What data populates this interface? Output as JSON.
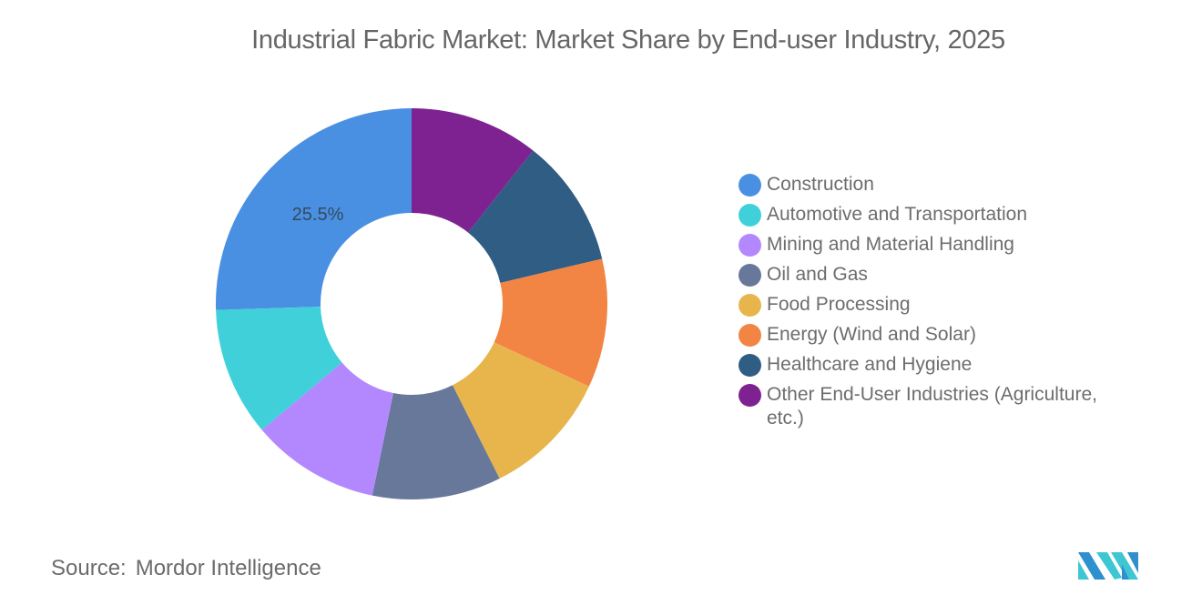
{
  "title": "Industrial Fabric Market: Market Share by End-user Industry, 2025",
  "source": {
    "label": "Source:",
    "value": "Mordor Intelligence"
  },
  "logo": {
    "name": "Mordor Intelligence logo",
    "colors": [
      "#2f8fcf",
      "#3ec6d3"
    ]
  },
  "chart_data": {
    "type": "pie",
    "subtype": "donut",
    "title": "Industrial Fabric Market: Market Share by End-user Industry, 2025",
    "legend_position": "right",
    "start_angle_deg": 0,
    "direction": "clockwise-from-top (Construction drawn counter-clockwise from top)",
    "categories": [
      "Construction",
      "Automotive and Transportation",
      "Mining and Material Handling",
      "Oil and Gas",
      "Food Processing",
      "Energy (Wind and Solar)",
      "Healthcare and Hygiene",
      "Other End-User Industries (Agriculture, etc.)"
    ],
    "values": [
      25.5,
      10.64,
      10.64,
      10.64,
      10.64,
      10.64,
      10.64,
      10.66
    ],
    "labels_shown": {
      "Construction": "25.5%"
    },
    "colors": [
      "#4a90e2",
      "#3fd0d9",
      "#b388ff",
      "#67789a",
      "#e8b54d",
      "#f28444",
      "#2f5d83",
      "#7f2291"
    ]
  },
  "data_label": "25.5%",
  "legend": [
    {
      "label": "Construction",
      "color": "#4a90e2"
    },
    {
      "label": "Automotive and Transportation",
      "color": "#3fd0d9"
    },
    {
      "label": "Mining and Material Handling",
      "color": "#b388ff"
    },
    {
      "label": "Oil and Gas",
      "color": "#67789a"
    },
    {
      "label": "Food Processing",
      "color": "#e8b54d"
    },
    {
      "label": "Energy (Wind and Solar)",
      "color": "#f28444"
    },
    {
      "label": "Healthcare and Hygiene",
      "color": "#2f5d83"
    },
    {
      "label": "Other End-User Industries (Agriculture, etc.)",
      "color": "#7f2291"
    }
  ]
}
